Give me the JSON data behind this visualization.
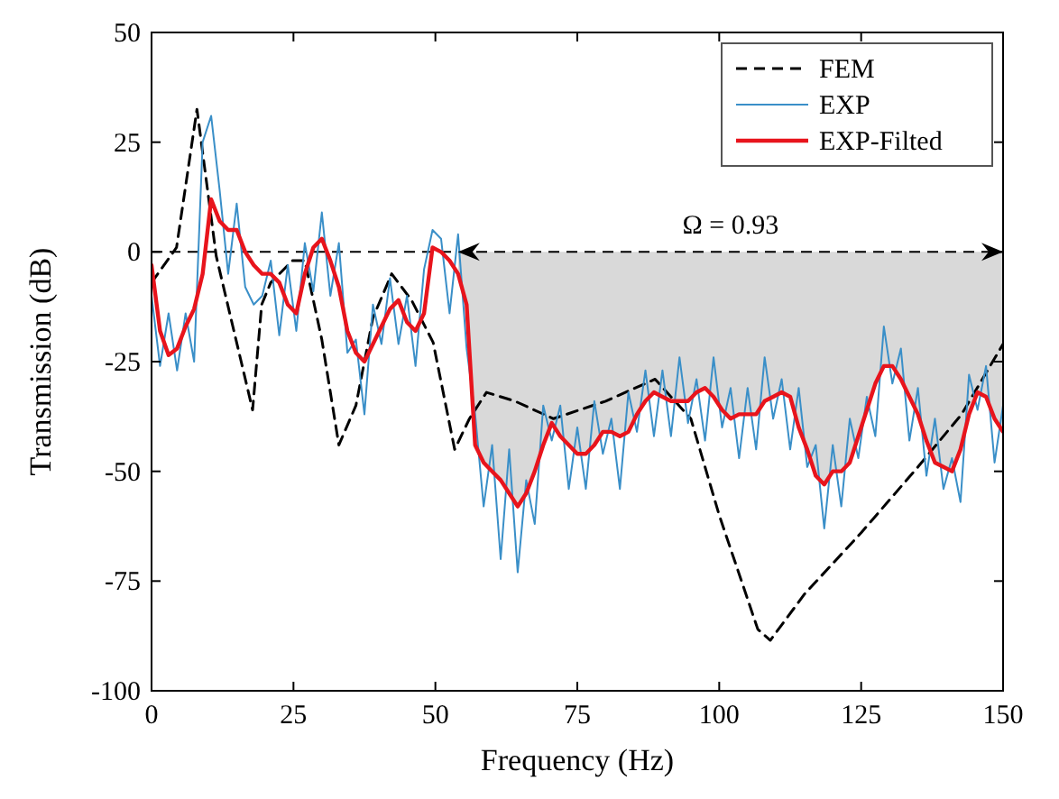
{
  "chart_data": {
    "type": "line",
    "xlabel": "Frequency (Hz)",
    "ylabel": "Transmission (dB)",
    "xlim": [
      0,
      150
    ],
    "ylim": [
      -100,
      50
    ],
    "xticks": [
      0,
      25,
      50,
      75,
      100,
      125,
      150
    ],
    "yticks": [
      -100,
      -75,
      -50,
      -25,
      0,
      25,
      50
    ],
    "legend": "top right",
    "annotations": [
      "Ω = 0.93"
    ],
    "ref_lines": [
      {
        "axis": "y",
        "value": 0,
        "color": "#000000",
        "line_style": "dashed"
      }
    ],
    "x": [
      0,
      1.5,
      3,
      4.5,
      6,
      7.5,
      9,
      10.5,
      12,
      13.5,
      15,
      16.5,
      18,
      19.5,
      21,
      22.5,
      24,
      25.5,
      27,
      28.5,
      30,
      31.5,
      33,
      34.5,
      36,
      37.5,
      39,
      40.5,
      42,
      43.5,
      45,
      46.5,
      48,
      49.5,
      51,
      52.5,
      54,
      55.5,
      57,
      58.5,
      60,
      61.5,
      63,
      64.5,
      66,
      67.5,
      69,
      70.5,
      72,
      73.5,
      75,
      76.5,
      78,
      79.5,
      81,
      82.5,
      84,
      85.5,
      87,
      88.5,
      90,
      91.5,
      93,
      94.5,
      96,
      97.5,
      99,
      100.5,
      102,
      103.5,
      105,
      106.5,
      108,
      109.5,
      111,
      112.5,
      114,
      115.5,
      117,
      118.5,
      120,
      121.5,
      123,
      124.5,
      126,
      127.5,
      129,
      130.5,
      132,
      133.5,
      135,
      136.5,
      138,
      139.5,
      141,
      142.5,
      144,
      145.5,
      147,
      148.5,
      150
    ],
    "series": [
      {
        "type": "area",
        "color": "#d9d9d9",
        "x": [
          54,
          55.5,
          57,
          58.5,
          60,
          61.5,
          63,
          64.5,
          66,
          67.5,
          69,
          70.5,
          72,
          73.5,
          75,
          76.5,
          78,
          79.5,
          81,
          82.5,
          84,
          85.5,
          87,
          88.5,
          90,
          91.5,
          93,
          94.5,
          96,
          97.5,
          99,
          100.5,
          102,
          103.5,
          105,
          106.5,
          108,
          109.5,
          111,
          112.5,
          114,
          115.5,
          117,
          118.5,
          120,
          121.5,
          123,
          124.5,
          126,
          127.5,
          129,
          130.5,
          132,
          133.5,
          135,
          136.5,
          138,
          139.5,
          141,
          142.5,
          144,
          145.5,
          147,
          148.5,
          150
        ],
        "values": [
          -5,
          -12,
          -44,
          -48,
          -50,
          -52,
          -55,
          -58,
          -55,
          -50,
          -44,
          -39,
          -42,
          -44,
          -46,
          -46,
          -44,
          -41,
          -41,
          -42,
          -41,
          -37,
          -34,
          -32,
          -33,
          -34,
          -34,
          -34,
          -32,
          -31,
          -33,
          -36,
          -38,
          -37,
          -37,
          -37,
          -34,
          -33,
          -32,
          -33,
          -40,
          -45,
          -51,
          -53,
          -50,
          -50,
          -48,
          -42,
          -36,
          -30,
          -26,
          -26,
          -29,
          -33,
          -37,
          -43,
          -48,
          -49,
          -50,
          -45,
          -37,
          -32,
          -33,
          -38,
          -41
        ]
      },
      {
        "name": "FEM",
        "color": "#000000",
        "line_style": "dashed",
        "x": [
          0,
          4.4,
          8,
          11.4,
          17.8,
          19.4,
          21,
          24.8,
          27,
          30,
          33,
          36,
          39,
          42.3,
          45.8,
          49.6,
          53.4,
          56,
          59,
          64,
          70.8,
          80,
          88.7,
          95,
          100,
          106.8,
          109,
          115,
          125,
          135,
          142.7,
          150
        ],
        "values": [
          -7,
          1,
          32.5,
          -1,
          -36,
          -12,
          -7,
          -2,
          -2,
          -20,
          -44,
          -35,
          -15,
          -5,
          -11,
          -20.6,
          -45,
          -38,
          -32,
          -34,
          -38,
          -34,
          -29,
          -38,
          -60,
          -86,
          -88.5,
          -78,
          -64,
          -49,
          -37,
          -21
        ]
      },
      {
        "name": "EXP",
        "color": "#3a8fc8",
        "values": [
          -10,
          -26,
          -14,
          -27,
          -14,
          -25,
          25,
          31,
          14,
          -5,
          11,
          -8,
          -12,
          -10,
          -2,
          -19,
          -3,
          -18,
          2,
          -9,
          9,
          -10,
          2,
          -23,
          -20,
          -37,
          -12,
          -21,
          -6,
          -21,
          -10,
          -26,
          -4,
          5,
          3,
          -14,
          4,
          -22,
          -37,
          -58,
          -44,
          -70,
          -45,
          -73,
          -52,
          -62,
          -35,
          -43,
          -35,
          -54,
          -40,
          -54,
          -34,
          -46,
          -38,
          -54,
          -32,
          -41,
          -27,
          -42,
          -27,
          -42,
          -24,
          -39,
          -29,
          -43,
          -24,
          -40,
          -31,
          -47,
          -31,
          -45,
          -24,
          -38,
          -29,
          -45,
          -31,
          -49,
          -44,
          -63,
          -44,
          -58,
          -38,
          -47,
          -33,
          -42,
          -17,
          -30,
          -22,
          -43,
          -31,
          -51,
          -38,
          -54,
          -47,
          -57,
          -28,
          -36,
          -26,
          -48,
          -35
        ]
      },
      {
        "name": "EXP-Filted",
        "color": "#e8141c",
        "values": [
          -3,
          -18,
          -23.5,
          -22,
          -17,
          -13,
          -5,
          12,
          7,
          5,
          5,
          0,
          -3,
          -5,
          -5,
          -7,
          -12,
          -14,
          -5,
          1,
          3,
          -2,
          -8,
          -18,
          -23,
          -25,
          -21,
          -17,
          -13,
          -11,
          -16,
          -18,
          -14,
          1,
          0,
          -2,
          -5,
          -12,
          -44,
          -48,
          -50,
          -52,
          -55,
          -58,
          -55,
          -50,
          -44,
          -39,
          -42,
          -44,
          -46,
          -46,
          -44,
          -41,
          -41,
          -42,
          -41,
          -37,
          -34,
          -32,
          -33,
          -34,
          -34,
          -34,
          -32,
          -31,
          -33,
          -36,
          -38,
          -37,
          -37,
          -37,
          -34,
          -33,
          -32,
          -33,
          -40,
          -45,
          -51,
          -53,
          -50,
          -50,
          -48,
          -42,
          -36,
          -30,
          -26,
          -26,
          -29,
          -33,
          -37,
          -43,
          -48,
          -49,
          -50,
          -45,
          -37,
          -32,
          -33,
          -38,
          -41
        ]
      }
    ]
  }
}
